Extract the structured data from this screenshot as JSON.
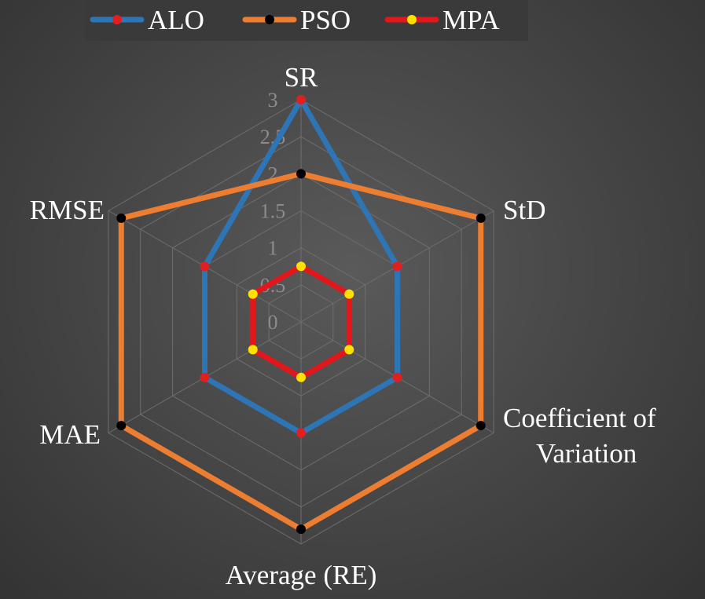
{
  "chart_data": {
    "type": "radar",
    "title": "",
    "axes": [
      "SR",
      "StD",
      "Coefficient of Variation",
      "Average (RE)",
      "MAE",
      "RMSE"
    ],
    "axis_label_lines": [
      [
        "SR"
      ],
      [
        "StD"
      ],
      [
        "Coefficient of",
        "Variation"
      ],
      [
        "Average (RE)"
      ],
      [
        "MAE"
      ],
      [
        "RMSE"
      ]
    ],
    "ticks": [
      "0",
      "0.5",
      "1",
      "1.5",
      "2",
      "2.5",
      "3"
    ],
    "range": [
      0,
      3
    ],
    "grid": true,
    "legend_position": "top",
    "series": [
      {
        "name": "ALO",
        "values": [
          3,
          1.5,
          1.5,
          1.5,
          1.5,
          1.5
        ],
        "color": "#2e75b6",
        "marker": "#e02020"
      },
      {
        "name": "PSO",
        "values": [
          2,
          2.8,
          2.8,
          2.8,
          2.8,
          2.8
        ],
        "color": "#ed7d31",
        "marker": "#000000"
      },
      {
        "name": "MPA",
        "values": [
          0.75,
          0.75,
          0.75,
          0.75,
          0.75,
          0.75
        ],
        "color": "#e3161b",
        "marker": "#ffe000"
      }
    ]
  }
}
